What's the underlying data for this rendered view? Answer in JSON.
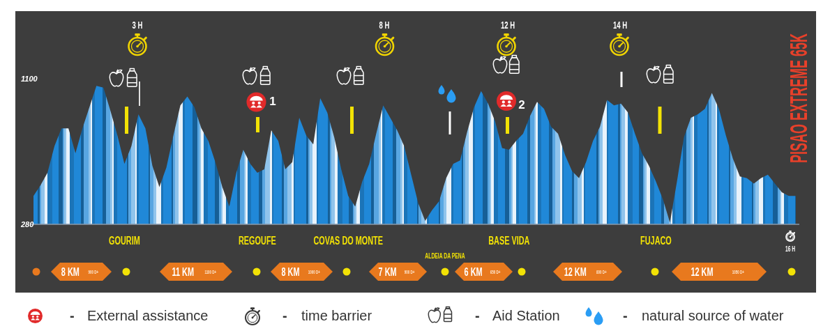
{
  "chart_data": {
    "type": "area",
    "title": "PISAO EXTREME 65K",
    "categories": [
      null,
      null,
      null,
      null,
      null,
      null,
      null,
      null,
      null,
      null,
      null,
      null,
      null,
      "GOURIM",
      null,
      null,
      null,
      null,
      null,
      null,
      null,
      null,
      null,
      null,
      null,
      null,
      null,
      null,
      null,
      null,
      null,
      null,
      "REGOUFE",
      null,
      null,
      null,
      null,
      null,
      null,
      null,
      null,
      null,
      null,
      null,
      null,
      "COVAS DO MONTE",
      null,
      null,
      null,
      null,
      null,
      null,
      null,
      null,
      null,
      null,
      null,
      null,
      null,
      null,
      null,
      null,
      null,
      null,
      null,
      null,
      null,
      null,
      "BASE VIDA",
      null,
      null,
      null,
      null,
      null,
      null,
      null,
      null,
      null,
      null,
      null,
      null,
      null,
      null,
      null,
      null,
      null,
      null,
      null,
      null,
      "FUJACO",
      null,
      null,
      null,
      null,
      null,
      null,
      null,
      null,
      null,
      null,
      null,
      null,
      null,
      null,
      null,
      null,
      null,
      null,
      null,
      null
    ],
    "values": [
      440,
      500,
      570,
      720,
      820,
      820,
      680,
      820,
      940,
      1060,
      1050,
      920,
      780,
      620,
      720,
      900,
      820,
      610,
      490,
      600,
      780,
      950,
      1000,
      940,
      820,
      750,
      630,
      490,
      380,
      570,
      700,
      620,
      570,
      590,
      810,
      750,
      590,
      630,
      880,
      780,
      730,
      990,
      910,
      770,
      590,
      440,
      380,
      520,
      620,
      790,
      950,
      880,
      810,
      720,
      560,
      400,
      300,
      360,
      410,
      540,
      620,
      640,
      800,
      940,
      1030,
      960,
      860,
      710,
      700,
      750,
      790,
      890,
      970,
      930,
      830,
      790,
      670,
      580,
      540,
      630,
      750,
      830,
      980,
      950,
      960,
      910,
      790,
      680,
      610,
      520,
      420,
      290,
      520,
      770,
      880,
      900,
      930,
      1020,
      930,
      780,
      650,
      550,
      540,
      510,
      540,
      560,
      510,
      460,
      440,
      440
    ],
    "color": "#2088d8",
    "ylim": [
      280,
      1100
    ],
    "yticks": [
      280,
      1100
    ],
    "annotations": [
      "3 H",
      "8 H",
      "12 H",
      "14 H",
      "16 H",
      "1",
      "2",
      "8 KM",
      "900 D+",
      "11 KM",
      "1100 D+",
      "8 KM",
      "1000 D+",
      "7 KM",
      "900 D+",
      "6 KM",
      "650 D+",
      "12 KM",
      "800 D+",
      "12 KM",
      "1050 D+",
      "- External assistance",
      "- time barrier",
      "- Aid Station",
      "- natural source of water",
      "ALDEIA DA PENA"
    ]
  }
}
